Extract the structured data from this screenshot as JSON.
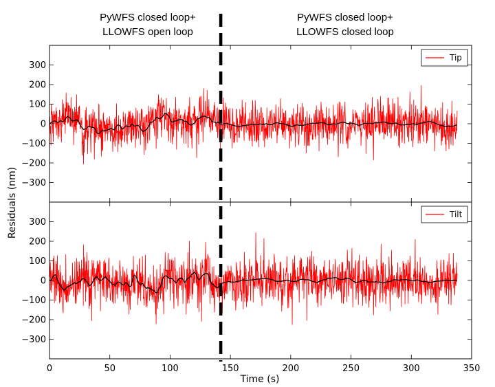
{
  "chart_data": {
    "type": "line",
    "annotations": [
      {
        "line1": "PyWFS closed loop+",
        "line2": "LLOWFS open loop"
      },
      {
        "line1": "PyWFS closed loop+",
        "line2": "LLOWFS closed loop"
      }
    ],
    "shared_x": {
      "label": "Time (s)",
      "xlim": [
        0,
        350
      ],
      "ticks": [
        "0",
        "50",
        "100",
        "150",
        "200",
        "250",
        "300",
        "350"
      ]
    },
    "ylabel": "Residuals (nm)",
    "ylim": [
      -400,
      400
    ],
    "y_ticks": [
      "−300",
      "−200",
      "−100",
      "0",
      "100",
      "200",
      "300"
    ],
    "divider_time": 142,
    "series_color": "#ff0000",
    "smoothed_color": "#000000",
    "panels": [
      {
        "legend": "Tip",
        "duration": 338,
        "before_noise_std": 58,
        "after_noise_std": 55,
        "before_smooth_amplitude": 30,
        "after_smooth_amplitude": 8,
        "peak_value": 240
      },
      {
        "legend": "Tilt",
        "duration": 338,
        "before_noise_std": 62,
        "after_noise_std": 65,
        "before_smooth_amplitude": 35,
        "after_smooth_amplitude": 10,
        "peak_value": 310
      }
    ]
  }
}
